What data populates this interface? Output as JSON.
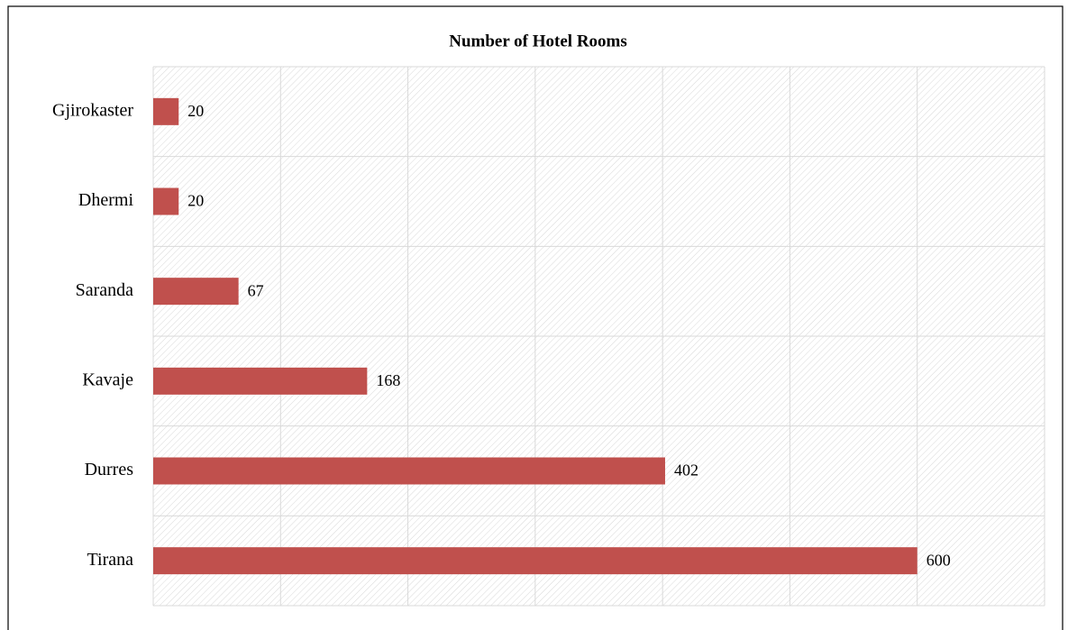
{
  "chart_data": {
    "type": "bar",
    "orientation": "horizontal",
    "title": "Number of Hotel Rooms",
    "categories": [
      "Gjirokaster",
      "Dhermi",
      "Saranda",
      "Kavaje",
      "Durres",
      "Tirana"
    ],
    "values": [
      20,
      20,
      67,
      168,
      402,
      600
    ],
    "color": "#c0504d",
    "xlim": [
      0,
      700
    ],
    "xticks": [
      0,
      100,
      200,
      300,
      400,
      500,
      600,
      700
    ],
    "grid": true
  }
}
